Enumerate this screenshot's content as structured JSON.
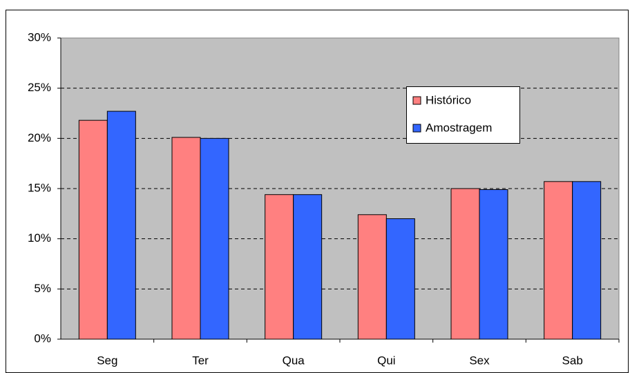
{
  "chart_data": {
    "type": "bar",
    "categories": [
      "Seg",
      "Ter",
      "Qua",
      "Qui",
      "Sex",
      "Sab"
    ],
    "series": [
      {
        "name": "Histórico",
        "color": "#ff8080",
        "values": [
          21.8,
          20.1,
          14.4,
          12.4,
          15.0,
          15.7
        ]
      },
      {
        "name": "Amostragem",
        "color": "#3366ff",
        "values": [
          22.7,
          20.0,
          14.4,
          12.0,
          14.9,
          15.7
        ]
      }
    ],
    "ylim": [
      0,
      30
    ],
    "yticks": [
      {
        "value": 0,
        "label": "0%"
      },
      {
        "value": 5,
        "label": "5%"
      },
      {
        "value": 10,
        "label": "10%"
      },
      {
        "value": 15,
        "label": "15%"
      },
      {
        "value": 20,
        "label": "20%"
      },
      {
        "value": 25,
        "label": "25%"
      },
      {
        "value": 30,
        "label": "30%"
      }
    ],
    "grid": true,
    "legend": "upper right"
  }
}
